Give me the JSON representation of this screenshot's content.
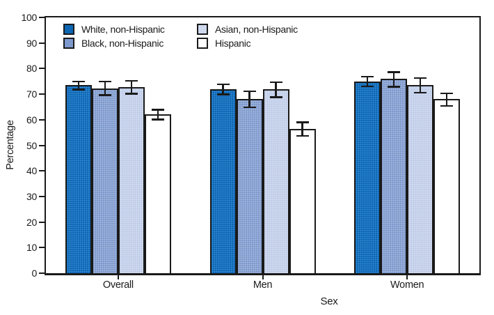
{
  "chart_data": {
    "type": "bar",
    "title": "",
    "xlabel": "Sex",
    "ylabel": "Percentage",
    "categories": [
      "Overall",
      "Men",
      "Women"
    ],
    "series": [
      {
        "name": "White, non-Hispanic",
        "color": "#0d66b3",
        "values": [
          73.5,
          72.0,
          75.0
        ],
        "ci_low": [
          71.5,
          69.5,
          72.7
        ],
        "ci_high": [
          75.3,
          74.2,
          77.2
        ]
      },
      {
        "name": "Black, non-Hispanic",
        "color": "#7d99cd",
        "values": [
          72.2,
          68.2,
          75.9
        ],
        "ci_low": [
          69.3,
          64.5,
          72.5
        ],
        "ci_high": [
          75.3,
          71.5,
          79.0
        ]
      },
      {
        "name": "Asian, non-Hispanic",
        "color": "#cfd9ee",
        "values": [
          72.8,
          72.0,
          73.5
        ],
        "ci_low": [
          69.8,
          68.5,
          70.2
        ],
        "ci_high": [
          75.6,
          75.0,
          76.6
        ]
      },
      {
        "name": "Hispanic",
        "color": "#ffffff",
        "values": [
          62.0,
          56.5,
          68.0
        ],
        "ci_low": [
          59.7,
          53.4,
          65.0
        ],
        "ci_high": [
          64.3,
          59.3,
          70.6
        ]
      }
    ],
    "ylim": [
      0,
      100
    ],
    "ytick_step": 10,
    "grid": false,
    "error_bars": true,
    "legend_position": "top-left-inside",
    "frame_color": "#1a1a1a"
  }
}
